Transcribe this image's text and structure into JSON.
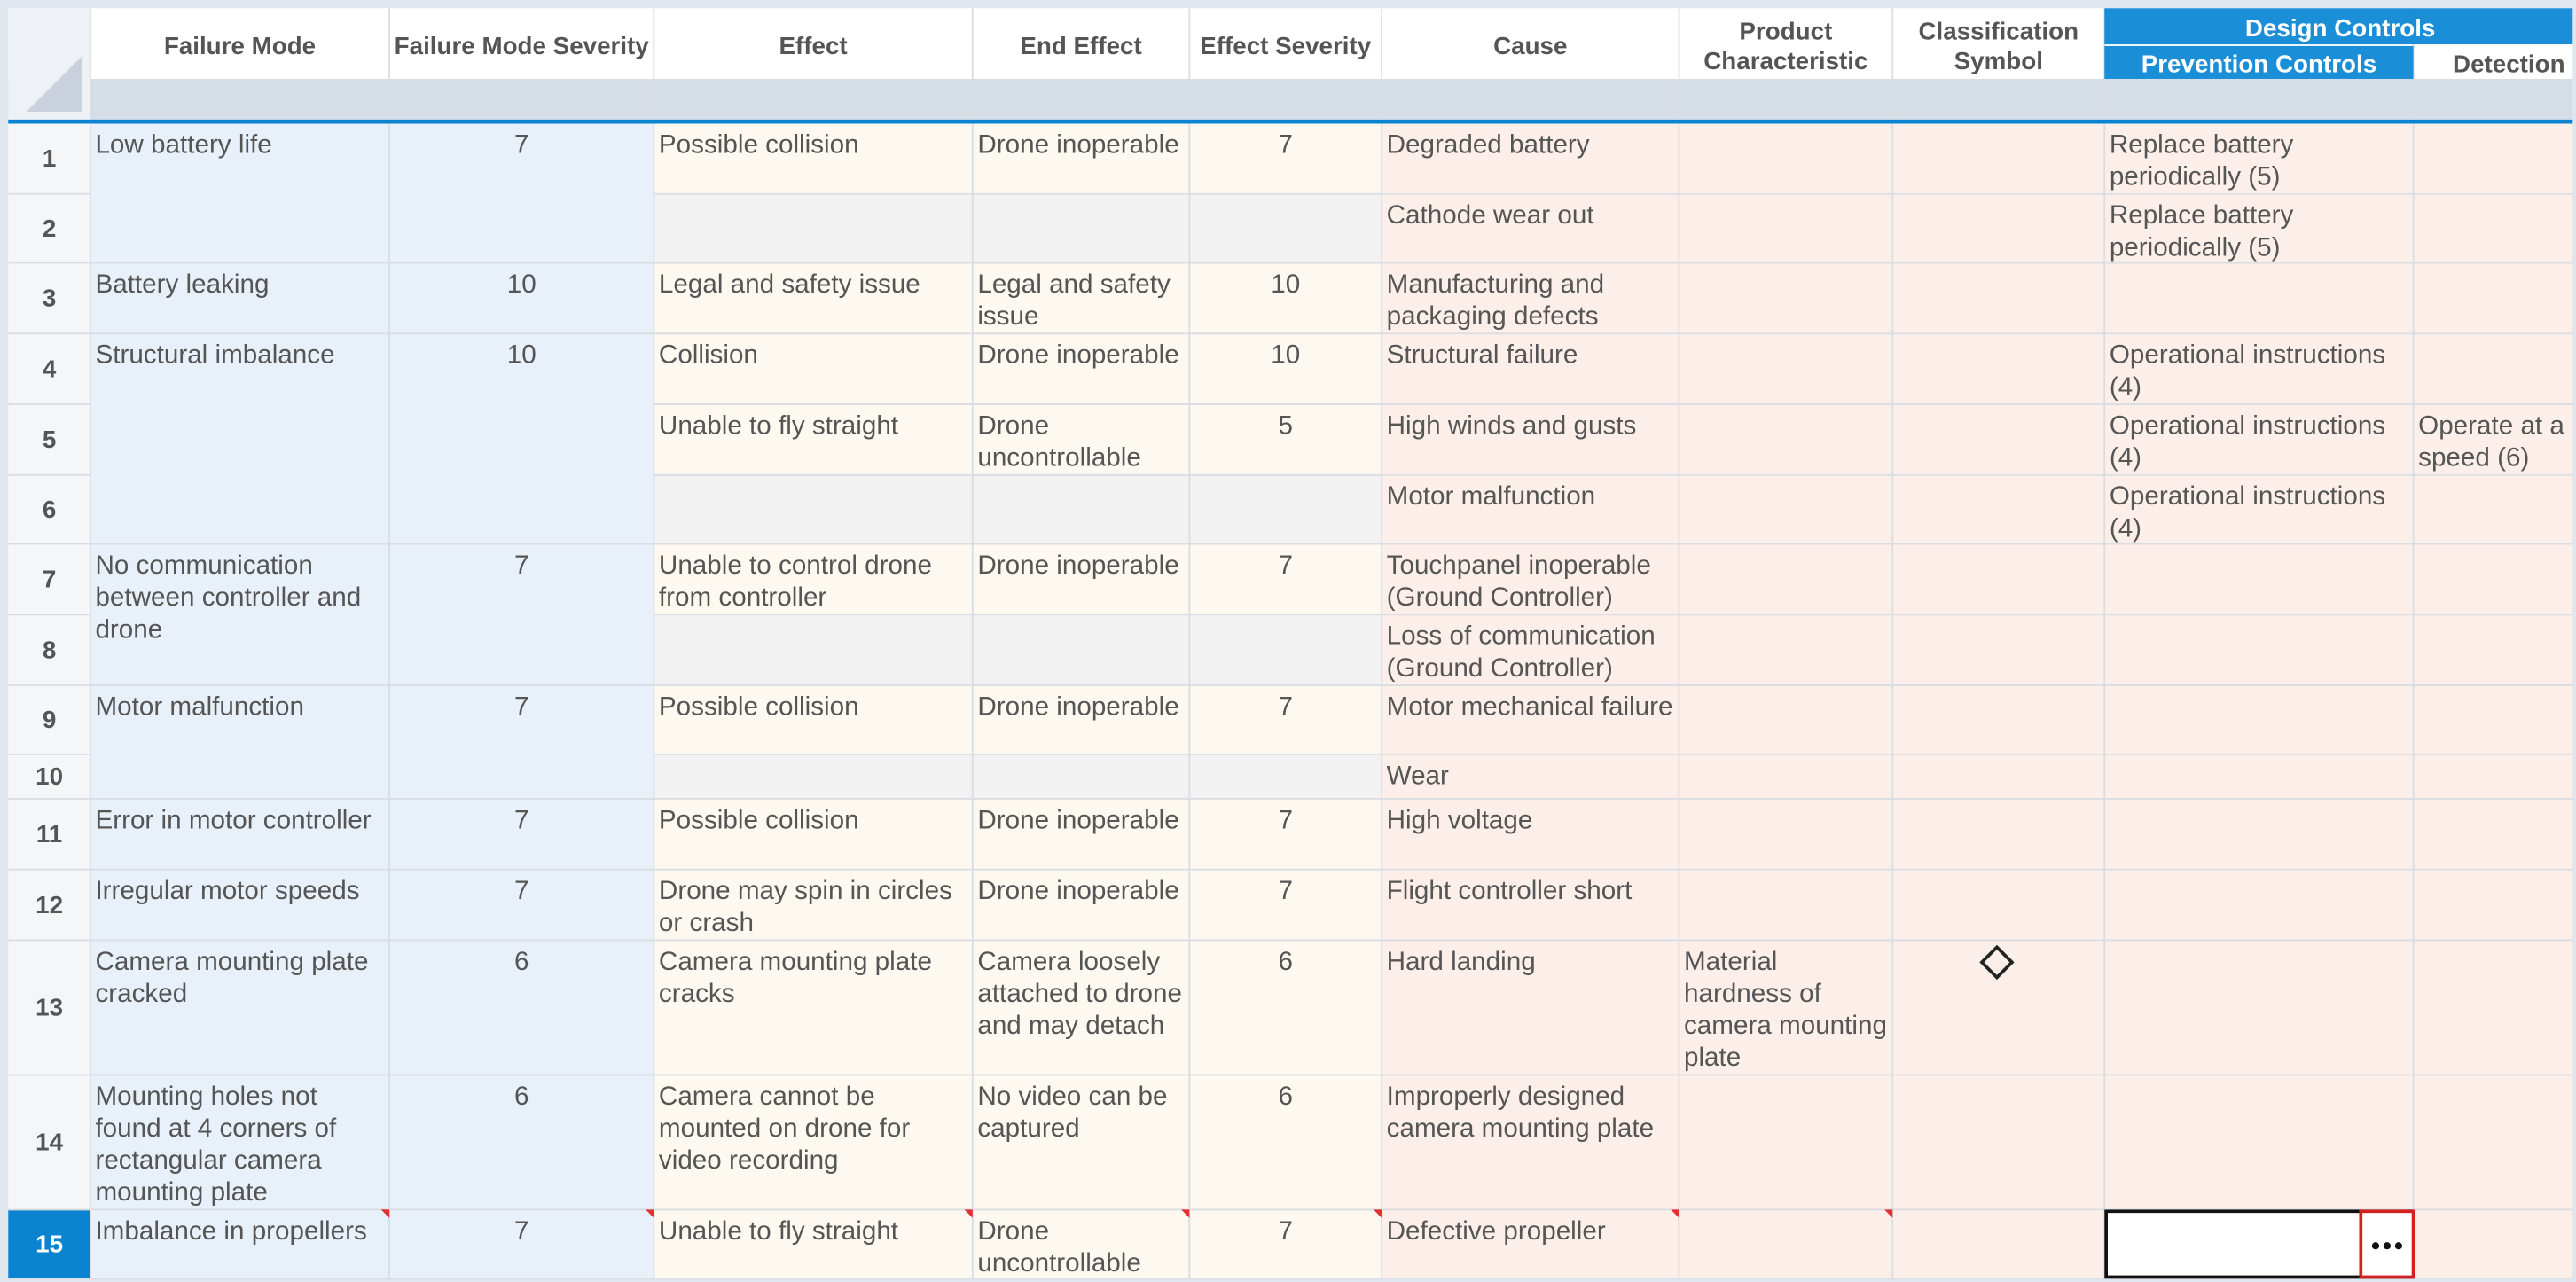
{
  "table": {
    "columns": [
      "Failure Mode",
      "Failure Mode Severity",
      "Effect",
      "End Effect",
      "Effect Severity",
      "Cause",
      "Product Characteristic",
      "Classification Symbol"
    ],
    "group": {
      "title": "Design Controls",
      "columns": [
        "Prevention Controls",
        "Detection"
      ]
    },
    "rows": [
      {
        "number": 1,
        "cells": [
          "Low battery life",
          7,
          "Possible collision",
          "Drone inoperable",
          7,
          "Degraded battery",
          null,
          null,
          "Replace battery periodically (5)",
          null
        ]
      },
      {
        "number": 2,
        "cells": [
          null,
          null,
          null,
          null,
          null,
          "Cathode wear out",
          null,
          null,
          "Replace battery periodically (5)",
          null
        ]
      },
      {
        "number": 3,
        "cells": [
          "Battery leaking",
          10,
          "Legal and safety issue",
          "Legal and safety issue",
          10,
          "Manufacturing and packaging defects",
          null,
          null,
          null,
          null
        ]
      },
      {
        "number": 4,
        "cells": [
          "Structural imbalance",
          10,
          "Collision",
          "Drone inoperable",
          10,
          "Structural failure",
          null,
          null,
          "Operational instructions (4)",
          null
        ]
      },
      {
        "number": 5,
        "cells": [
          null,
          null,
          "Unable to fly straight",
          "Drone uncontrollable",
          5,
          "High winds and gusts",
          null,
          null,
          "Operational instructions (4)",
          "Operate at a speed (6)"
        ]
      },
      {
        "number": 6,
        "cells": [
          null,
          null,
          null,
          null,
          null,
          "Motor malfunction",
          null,
          null,
          "Operational instructions (4)",
          null
        ]
      },
      {
        "number": 7,
        "cells": [
          "No communication between controller and drone",
          7,
          "Unable to control drone from controller",
          "Drone inoperable",
          7,
          "Touchpanel inoperable (Ground Controller)",
          null,
          null,
          null,
          null
        ]
      },
      {
        "number": 8,
        "cells": [
          null,
          null,
          null,
          null,
          null,
          "Loss of communication (Ground Controller)",
          null,
          null,
          null,
          null
        ]
      },
      {
        "number": 9,
        "cells": [
          "Motor malfunction",
          7,
          "Possible collision",
          "Drone inoperable",
          7,
          "Motor mechanical failure",
          null,
          null,
          null,
          null
        ]
      },
      {
        "number": 10,
        "cells": [
          null,
          null,
          null,
          null,
          null,
          "Wear",
          null,
          null,
          null,
          null
        ]
      },
      {
        "number": 11,
        "cells": [
          "Error in motor controller",
          7,
          "Possible collision",
          "Drone inoperable",
          7,
          "High voltage",
          null,
          null,
          null,
          null
        ]
      },
      {
        "number": 12,
        "cells": [
          "Irregular motor speeds",
          7,
          "Drone may spin in circles or crash",
          "Drone inoperable",
          7,
          "Flight controller short",
          null,
          null,
          null,
          null
        ]
      },
      {
        "number": 13,
        "cells": [
          "Camera mounting plate cracked",
          6,
          "Camera mounting plate cracks",
          "Camera loosely attached to drone and may detach",
          6,
          "Hard landing",
          "Material hardness of camera mounting plate",
          "◇",
          null,
          null
        ]
      },
      {
        "number": 14,
        "cells": [
          "Mounting holes not found at 4 corners of rectangular camera mounting plate",
          6,
          "Camera cannot be mounted on drone for video recording",
          "No video can be captured",
          6,
          "Improperly designed camera mounting plate",
          null,
          null,
          null,
          null
        ]
      },
      {
        "number": 15,
        "cells": [
          "Imbalance in propellers",
          7,
          "Unable to fly straight",
          "Drone uncontrollable",
          7,
          "Defective propeller",
          null,
          null,
          null,
          null
        ]
      }
    ]
  }
}
